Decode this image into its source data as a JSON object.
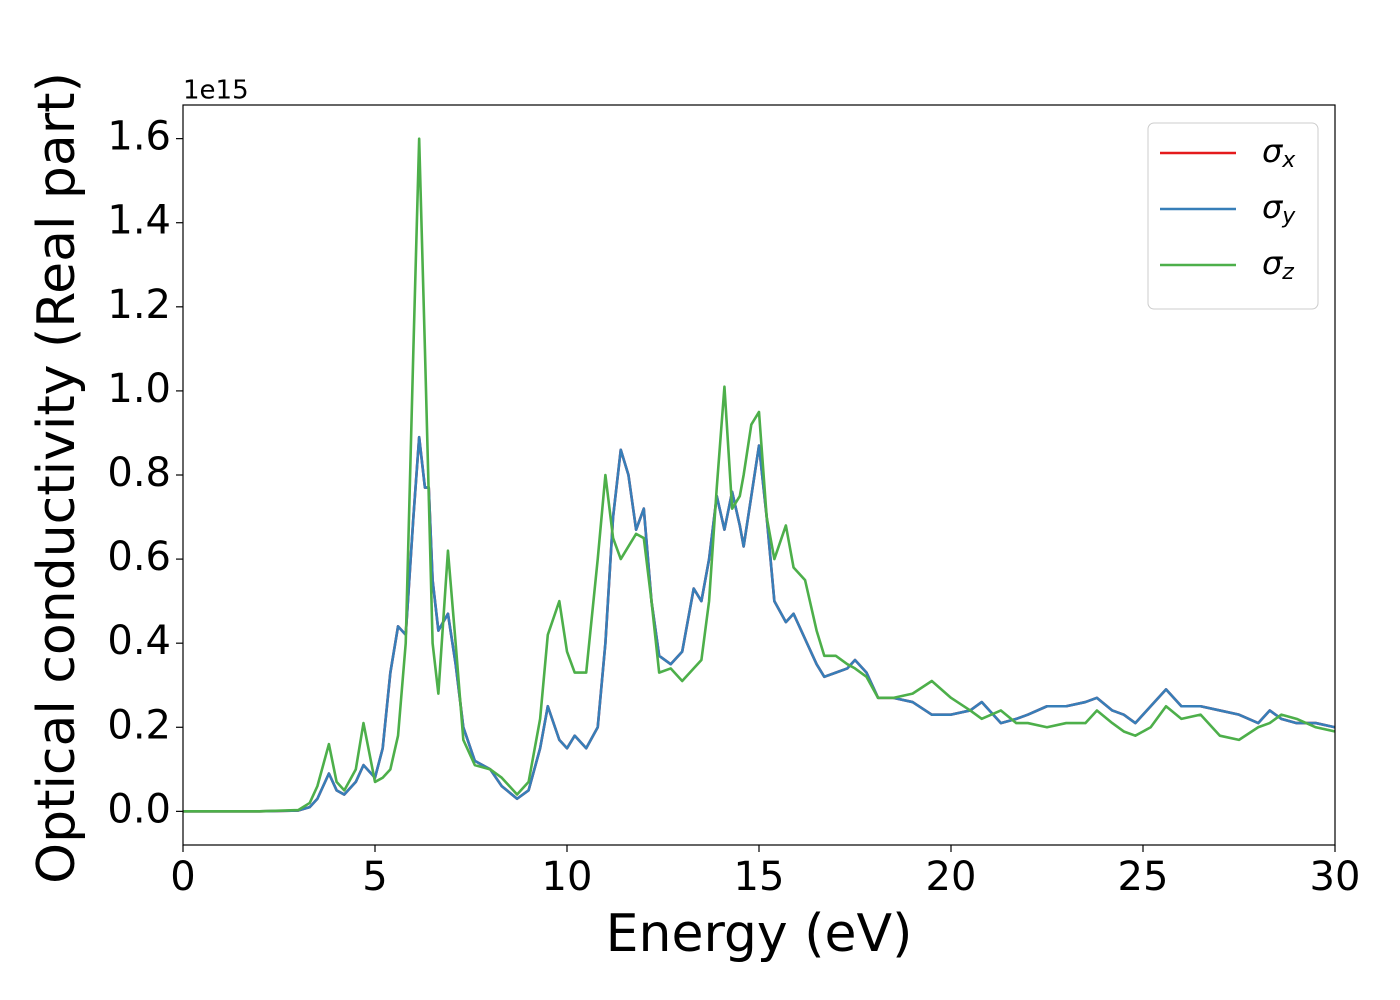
{
  "chart_data": {
    "type": "line",
    "xlabel": "Energy (eV)",
    "ylabel": "Optical conductivity (Real part)",
    "y_offset_label": "1e15",
    "xlim": [
      0,
      30
    ],
    "xticks": [
      0,
      5,
      10,
      15,
      20,
      25,
      30
    ],
    "ylim": [
      -0.08,
      1.68
    ],
    "yticks": [
      {
        "value": 0,
        "label": "0.0"
      },
      0.2,
      0.4,
      0.6,
      0.8,
      {
        "value": 1,
        "label": "1.0"
      },
      1.2,
      1.4,
      1.6
    ],
    "grid": false,
    "legend": "upper right",
    "x": [
      0,
      1,
      2,
      3,
      3.3,
      3.5,
      3.8,
      4,
      4.2,
      4.5,
      4.7,
      5,
      5.2,
      5.4,
      5.6,
      5.8,
      6,
      6.15,
      6.3,
      6.4,
      6.5,
      6.65,
      6.9,
      7.1,
      7.3,
      7.6,
      8,
      8.3,
      8.7,
      9,
      9.3,
      9.5,
      9.8,
      10,
      10.2,
      10.5,
      10.8,
      11,
      11.2,
      11.4,
      11.6,
      11.8,
      12,
      12.2,
      12.4,
      12.7,
      13,
      13.3,
      13.5,
      13.7,
      13.9,
      14.1,
      14.3,
      14.5,
      14.6,
      14.8,
      15,
      15.2,
      15.4,
      15.7,
      15.9,
      16.2,
      16.5,
      16.7,
      17,
      17.3,
      17.5,
      17.8,
      18.1,
      18.5,
      19,
      19.5,
      20,
      20.5,
      20.8,
      21.3,
      21.7,
      22,
      22.5,
      23,
      23.5,
      23.8,
      24.2,
      24.5,
      24.8,
      25.2,
      25.6,
      26,
      26.5,
      27,
      27.5,
      28,
      28.3,
      28.6,
      29,
      29.5,
      30
    ],
    "series": [
      {
        "name": "σx",
        "color": "#e41a1c",
        "values": [
          0,
          0,
          0,
          0.002,
          0.01,
          0.03,
          0.09,
          0.05,
          0.04,
          0.07,
          0.11,
          0.08,
          0.15,
          0.33,
          0.44,
          0.42,
          0.7,
          0.89,
          0.77,
          0.77,
          0.55,
          0.43,
          0.47,
          0.35,
          0.2,
          0.12,
          0.1,
          0.06,
          0.03,
          0.05,
          0.15,
          0.25,
          0.17,
          0.15,
          0.18,
          0.15,
          0.2,
          0.4,
          0.7,
          0.86,
          0.8,
          0.67,
          0.72,
          0.5,
          0.37,
          0.35,
          0.38,
          0.53,
          0.5,
          0.6,
          0.75,
          0.67,
          0.76,
          0.68,
          0.63,
          0.75,
          0.87,
          0.7,
          0.5,
          0.45,
          0.47,
          0.41,
          0.35,
          0.32,
          0.33,
          0.34,
          0.36,
          0.33,
          0.27,
          0.27,
          0.26,
          0.23,
          0.23,
          0.24,
          0.26,
          0.21,
          0.22,
          0.23,
          0.25,
          0.25,
          0.26,
          0.27,
          0.24,
          0.23,
          0.21,
          0.25,
          0.29,
          0.25,
          0.25,
          0.24,
          0.23,
          0.21,
          0.24,
          0.22,
          0.21,
          0.21,
          0.2
        ]
      },
      {
        "name": "σy",
        "color": "#377eb8",
        "values": [
          0,
          0,
          0,
          0.002,
          0.01,
          0.03,
          0.09,
          0.05,
          0.04,
          0.07,
          0.11,
          0.08,
          0.15,
          0.33,
          0.44,
          0.42,
          0.7,
          0.89,
          0.77,
          0.77,
          0.55,
          0.43,
          0.47,
          0.35,
          0.2,
          0.12,
          0.1,
          0.06,
          0.03,
          0.05,
          0.15,
          0.25,
          0.17,
          0.15,
          0.18,
          0.15,
          0.2,
          0.4,
          0.7,
          0.86,
          0.8,
          0.67,
          0.72,
          0.5,
          0.37,
          0.35,
          0.38,
          0.53,
          0.5,
          0.6,
          0.75,
          0.67,
          0.76,
          0.68,
          0.63,
          0.75,
          0.87,
          0.7,
          0.5,
          0.45,
          0.47,
          0.41,
          0.35,
          0.32,
          0.33,
          0.34,
          0.36,
          0.33,
          0.27,
          0.27,
          0.26,
          0.23,
          0.23,
          0.24,
          0.26,
          0.21,
          0.22,
          0.23,
          0.25,
          0.25,
          0.26,
          0.27,
          0.24,
          0.23,
          0.21,
          0.25,
          0.29,
          0.25,
          0.25,
          0.24,
          0.23,
          0.21,
          0.24,
          0.22,
          0.21,
          0.21,
          0.2
        ]
      },
      {
        "name": "σz",
        "color": "#4daf4a",
        "values": [
          0,
          0,
          0,
          0.003,
          0.02,
          0.06,
          0.16,
          0.07,
          0.05,
          0.1,
          0.21,
          0.07,
          0.08,
          0.1,
          0.18,
          0.4,
          1.1,
          1.6,
          1.1,
          0.75,
          0.4,
          0.28,
          0.62,
          0.4,
          0.17,
          0.11,
          0.1,
          0.08,
          0.04,
          0.07,
          0.22,
          0.42,
          0.5,
          0.38,
          0.33,
          0.33,
          0.6,
          0.8,
          0.65,
          0.6,
          0.63,
          0.66,
          0.65,
          0.5,
          0.33,
          0.34,
          0.31,
          0.34,
          0.36,
          0.5,
          0.77,
          1.01,
          0.72,
          0.75,
          0.8,
          0.92,
          0.95,
          0.7,
          0.6,
          0.68,
          0.58,
          0.55,
          0.43,
          0.37,
          0.37,
          0.35,
          0.34,
          0.32,
          0.27,
          0.27,
          0.28,
          0.31,
          0.27,
          0.24,
          0.22,
          0.24,
          0.21,
          0.21,
          0.2,
          0.21,
          0.21,
          0.24,
          0.21,
          0.19,
          0.18,
          0.2,
          0.25,
          0.22,
          0.23,
          0.18,
          0.17,
          0.2,
          0.21,
          0.23,
          0.22,
          0.2,
          0.19
        ]
      }
    ]
  }
}
